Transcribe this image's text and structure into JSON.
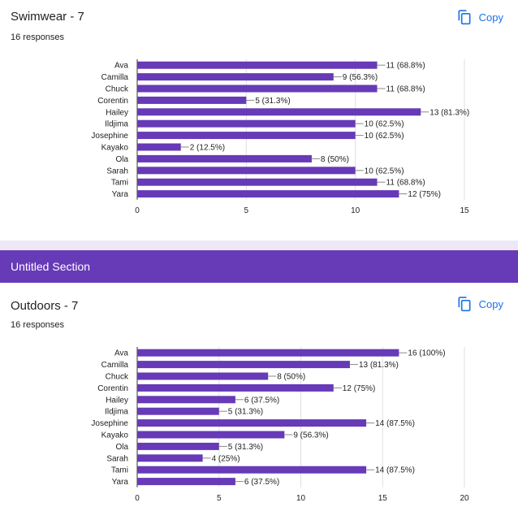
{
  "questions": [
    {
      "title": "Swimwear - 7",
      "responses": "16 responses",
      "copy_label": "Copy"
    },
    {
      "title": "Outdoors - 7",
      "responses": "16 responses",
      "copy_label": "Copy"
    }
  ],
  "section": {
    "title": "Untitled Section"
  },
  "colors": {
    "bar": "#673ab7",
    "accent": "#1a73e8",
    "section": "#673ab7"
  },
  "chart_data": [
    {
      "type": "bar",
      "orientation": "horizontal",
      "categories": [
        "Ava",
        "Camilla",
        "Chuck",
        "Corentin",
        "Hailey",
        "Ildjima",
        "Josephine",
        "Kayako",
        "Ola",
        "Sarah",
        "Tami",
        "Yara"
      ],
      "values": [
        11,
        9,
        11,
        5,
        13,
        10,
        10,
        2,
        8,
        10,
        11,
        12
      ],
      "labels": [
        "11 (68.8%)",
        "9 (56.3%)",
        "11 (68.8%)",
        "5 (31.3%)",
        "13 (81.3%)",
        "10 (62.5%)",
        "10 (62.5%)",
        "2 (12.5%)",
        "8 (50%)",
        "10 (62.5%)",
        "11 (68.8%)",
        "12 (75%)"
      ],
      "xlim": [
        0,
        15
      ],
      "xticks": [
        0,
        5,
        10,
        15
      ],
      "grid": true
    },
    {
      "type": "bar",
      "orientation": "horizontal",
      "categories": [
        "Ava",
        "Camilla",
        "Chuck",
        "Corentin",
        "Hailey",
        "Ildjima",
        "Josephine",
        "Kayako",
        "Ola",
        "Sarah",
        "Tami",
        "Yara"
      ],
      "values": [
        16,
        13,
        8,
        12,
        6,
        5,
        14,
        9,
        5,
        4,
        14,
        6
      ],
      "labels": [
        "16 (100%)",
        "13 (81.3%)",
        "8 (50%)",
        "12 (75%)",
        "6 (37.5%)",
        "5 (31.3%)",
        "14 (87.5%)",
        "9 (56.3%)",
        "5 (31.3%)",
        "4 (25%)",
        "14 (87.5%)",
        "6 (37.5%)"
      ],
      "xlim": [
        0,
        20
      ],
      "xticks": [
        0,
        5,
        10,
        15,
        20
      ],
      "grid": true
    }
  ]
}
